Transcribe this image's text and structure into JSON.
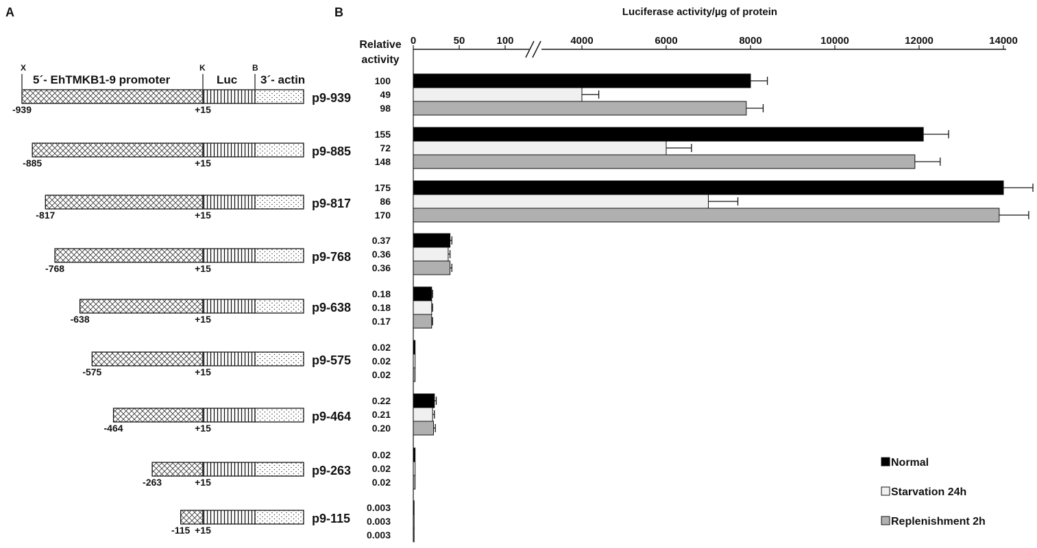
{
  "panels": {
    "a": "A",
    "b": "B"
  },
  "diagram": {
    "header": {
      "x": "X",
      "k": "K",
      "b": "B",
      "promoter": "5´- EhTMKB1-9 promoter",
      "luc": "Luc",
      "actin": "3´- actin"
    },
    "plus_label": "+15",
    "constructs": [
      {
        "name": "p9-939",
        "start": "-939",
        "start_value": -939
      },
      {
        "name": "p9-885",
        "start": "-885",
        "start_value": -885
      },
      {
        "name": "p9-817",
        "start": "-817",
        "start_value": -817
      },
      {
        "name": "p9-768",
        "start": "-768",
        "start_value": -768
      },
      {
        "name": "p9-638",
        "start": "-638",
        "start_value": -638
      },
      {
        "name": "p9-575",
        "start": "-575",
        "start_value": -575
      },
      {
        "name": "p9-464",
        "start": "-464",
        "start_value": -464
      },
      {
        "name": "p9-263",
        "start": "-263",
        "start_value": -263
      },
      {
        "name": "p9-115",
        "start": "-115",
        "start_value": -115
      }
    ]
  },
  "chart_data": {
    "type": "bar",
    "orientation": "horizontal",
    "title": "Luciferase activity/µg of protein",
    "relative_label": [
      "Relative",
      "activity"
    ],
    "axis_break": "//",
    "ticks_low": [
      0,
      50,
      100
    ],
    "ticks_high": [
      4000,
      6000,
      8000,
      10000,
      12000,
      14000
    ],
    "categories": [
      "p9-939",
      "p9-885",
      "p9-817",
      "p9-768",
      "p9-638",
      "p9-575",
      "p9-464",
      "p9-263",
      "p9-115"
    ],
    "series": [
      {
        "name": "Normal",
        "color": "#000000",
        "values": [
          8000,
          12100,
          14000,
          40,
          20,
          2,
          23,
          2,
          0.5
        ],
        "errors": [
          400,
          600,
          700,
          2,
          1,
          0.5,
          2,
          0.5,
          0.1
        ],
        "relative": [
          "100",
          "155",
          "175",
          "0.37",
          "0.18",
          "0.02",
          "0.22",
          "0.02",
          "0.003"
        ]
      },
      {
        "name": "Starvation 24h",
        "color": "#f0f0f0",
        "values": [
          4000,
          6000,
          7000,
          38,
          20,
          2,
          21,
          2,
          0.5
        ],
        "errors": [
          400,
          600,
          700,
          2,
          1,
          0.5,
          2,
          0.5,
          0.1
        ],
        "relative": [
          "49",
          "72",
          "86",
          "0.36",
          "0.18",
          "0.02",
          "0.21",
          "0.02",
          "0.003"
        ]
      },
      {
        "name": "Replenishment 2h",
        "color": "#b0b0b0",
        "values": [
          7900,
          11900,
          13900,
          40,
          20,
          2,
          22,
          2,
          0.5
        ],
        "errors": [
          400,
          600,
          700,
          2,
          1,
          0.5,
          2,
          0.5,
          0.1
        ],
        "relative": [
          "98",
          "148",
          "170",
          "0.36",
          "0.17",
          "0.02",
          "0.20",
          "0.02",
          "0.003"
        ]
      }
    ],
    "legend_position": "bottom-right"
  }
}
